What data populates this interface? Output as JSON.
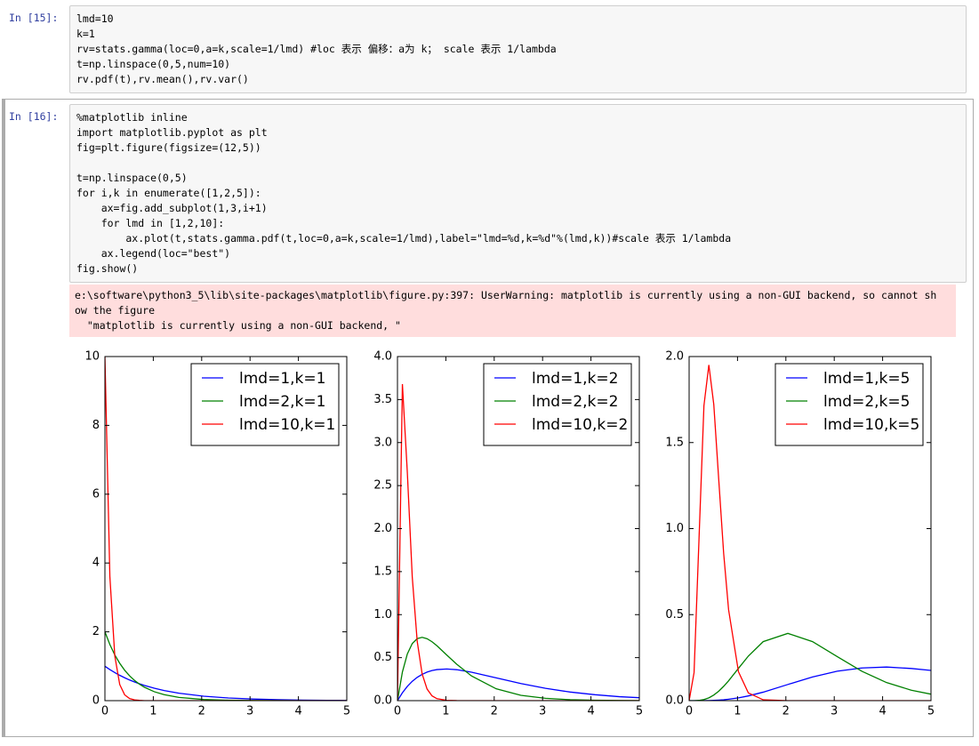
{
  "cells": [
    {
      "prompt": "In [15]:",
      "lines": [
        "lmd=10",
        "k=1",
        "rv=stats.gamma(loc=0,a=k,scale=1/lmd) #loc 表示 偏移：a为 k； scale 表示 1/lambda",
        "t=np.linspace(0,5,num=10)",
        "rv.pdf(t),rv.mean(),rv.var()"
      ]
    },
    {
      "prompt": "In [16]:",
      "lines": [
        "%matplotlib inline",
        "import matplotlib.pyplot as plt",
        "fig=plt.figure(figsize=(12,5))",
        "",
        "t=np.linspace(0,5)",
        "for i,k in enumerate([1,2,5]):",
        "    ax=fig.add_subplot(1,3,i+1)",
        "    for lmd in [1,2,10]:",
        "        ax.plot(t,stats.gamma.pdf(t,loc=0,a=k,scale=1/lmd),label=\"lmd=%d,k=%d\"%(lmd,k))#scale 表示 1/lambda",
        "    ax.legend(loc=\"best\")",
        "fig.show()"
      ],
      "output": [
        "e:\\software\\python3_5\\lib\\site-packages\\matplotlib\\figure.py:397: UserWarning: matplotlib is currently using a non-GUI backend, so cannot sh",
        "ow the figure",
        "  \"matplotlib is currently using a non-GUI backend, \""
      ]
    }
  ],
  "chart_data": [
    {
      "type": "line",
      "legend": "upper right",
      "x": [
        0,
        0.102,
        0.204,
        0.306,
        0.408,
        0.51,
        0.612,
        0.714,
        0.816,
        1.02,
        1.224,
        1.531,
        2.041,
        2.551,
        3.061,
        3.571,
        4.082,
        4.592,
        5
      ],
      "xlim": [
        0,
        5
      ],
      "xticks": [
        0,
        1,
        2,
        3,
        4,
        5
      ],
      "ylim": [
        0,
        10
      ],
      "yticks": [
        0,
        2,
        4,
        6,
        8,
        10
      ],
      "series": [
        {
          "name": "lmd=1,k=1",
          "color": "#0000ff",
          "values": [
            1,
            0.903,
            0.815,
            0.736,
            0.665,
            0.6,
            0.542,
            0.49,
            0.442,
            0.361,
            0.294,
            0.216,
            0.13,
            0.078,
            0.047,
            0.028,
            0.017,
            0.01,
            0.0067
          ]
        },
        {
          "name": "lmd=2,k=1",
          "color": "#008000",
          "values": [
            2,
            1.63,
            1.33,
            1.085,
            0.884,
            0.721,
            0.588,
            0.48,
            0.391,
            0.26,
            0.173,
            0.094,
            0.034,
            0.012,
            0.0044,
            0.0016,
            0.0006,
            0.0002,
            0.0001
          ]
        },
        {
          "name": "lmd=10,k=1",
          "color": "#ff0000",
          "values": [
            10,
            3.61,
            1.3,
            0.469,
            0.169,
            0.061,
            0.022,
            0.008,
            0.0003,
            0,
            0,
            0,
            0,
            0,
            0,
            0,
            0,
            0,
            0
          ]
        }
      ]
    },
    {
      "type": "line",
      "legend": "upper right",
      "x": [
        0,
        0.102,
        0.204,
        0.306,
        0.408,
        0.51,
        0.612,
        0.714,
        0.816,
        1.02,
        1.224,
        1.531,
        2.041,
        2.551,
        3.061,
        3.571,
        4.082,
        4.592,
        5
      ],
      "xlim": [
        0,
        5
      ],
      "xticks": [
        0,
        1,
        2,
        3,
        4,
        5
      ],
      "ylim": [
        0,
        4
      ],
      "yticks": [
        {
          "value": 0,
          "label": "0.0"
        },
        0.5,
        {
          "value": 1,
          "label": "1.0"
        },
        1.5,
        {
          "value": 2,
          "label": "2.0"
        },
        2.5,
        {
          "value": 3,
          "label": "3.0"
        },
        3.5,
        {
          "value": 4,
          "label": "4.0"
        }
      ],
      "series": [
        {
          "name": "lmd=1,k=2",
          "color": "#0000ff",
          "values": [
            0,
            0.092,
            0.166,
            0.225,
            0.271,
            0.306,
            0.332,
            0.35,
            0.361,
            0.368,
            0.36,
            0.331,
            0.265,
            0.199,
            0.143,
            0.1,
            0.069,
            0.046,
            0.034
          ]
        },
        {
          "name": "lmd=2,k=2",
          "color": "#008000",
          "values": [
            0,
            0.333,
            0.543,
            0.664,
            0.721,
            0.736,
            0.72,
            0.685,
            0.638,
            0.53,
            0.424,
            0.287,
            0.138,
            0.062,
            0.027,
            0.011,
            0.0046,
            0.0019,
            0.0009
          ]
        },
        {
          "name": "lmd=10,k=2",
          "color": "#ff0000",
          "values": [
            0,
            3.68,
            2.65,
            1.435,
            0.69,
            0.311,
            0.135,
            0.056,
            0.023,
            0.004,
            0.0006,
            0,
            0,
            0,
            0,
            0,
            0,
            0,
            0
          ]
        }
      ]
    },
    {
      "type": "line",
      "legend": "upper right",
      "x": [
        0,
        0.102,
        0.204,
        0.306,
        0.408,
        0.51,
        0.612,
        0.714,
        0.816,
        1.02,
        1.224,
        1.531,
        2.041,
        2.551,
        3.061,
        3.571,
        4.082,
        4.592,
        5
      ],
      "xlim": [
        0,
        5
      ],
      "xticks": [
        0,
        1,
        2,
        3,
        4,
        5
      ],
      "ylim": [
        0,
        2
      ],
      "yticks": [
        {
          "value": 0,
          "label": "0.0"
        },
        0.5,
        {
          "value": 1,
          "label": "1.0"
        },
        1.5,
        {
          "value": 2,
          "label": "2.0"
        }
      ],
      "series": [
        {
          "name": "lmd=1,k=5",
          "color": "#0000ff",
          "values": [
            0,
            0,
            6e-05,
            0.00027,
            0.00077,
            0.0017,
            0.0032,
            0.0053,
            0.0082,
            0.0163,
            0.0275,
            0.0494,
            0.094,
            0.1376,
            0.171,
            0.19,
            0.1955,
            0.187,
            0.1755
          ]
        },
        {
          "name": "lmd=2,k=5",
          "color": "#008000",
          "values": [
            0,
            0.00012,
            0.0015,
            0.0063,
            0.0163,
            0.0326,
            0.055,
            0.0832,
            0.1155,
            0.1876,
            0.259,
            0.343,
            0.391,
            0.343,
            0.256,
            0.171,
            0.105,
            0.061,
            0.0378
          ]
        },
        {
          "name": "lmd=10,k=5",
          "color": "#ff0000",
          "values": [
            0,
            0.163,
            0.937,
            1.714,
            1.951,
            1.721,
            1.286,
            0.856,
            0.528,
            0.168,
            0.045,
            0.005,
            0,
            0,
            0,
            0,
            0,
            0,
            0
          ]
        }
      ]
    }
  ]
}
